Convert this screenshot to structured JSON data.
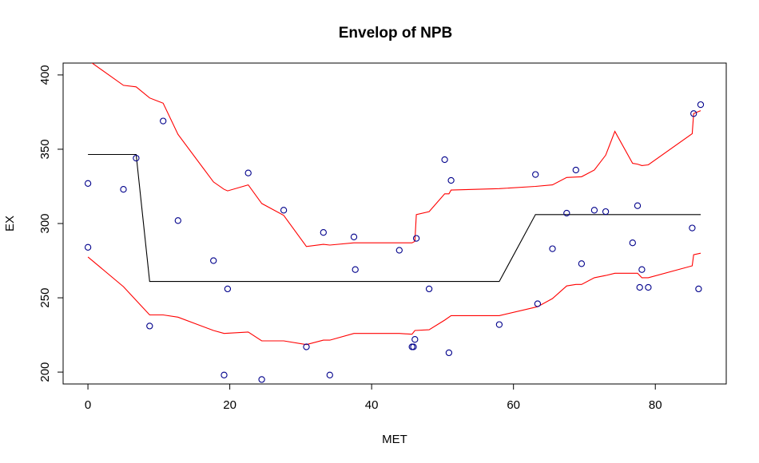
{
  "chart_data": {
    "type": "scatter",
    "title": "Envelop of NPB",
    "xlabel": "MET",
    "ylabel": "EX",
    "xlim": [
      -3.5,
      90
    ],
    "ylim": [
      192,
      408
    ],
    "x_ticks": [
      0,
      20,
      40,
      60,
      80
    ],
    "y_ticks": [
      200,
      250,
      300,
      350,
      400
    ],
    "grid": false,
    "legend": "none",
    "point_color": "#00008B",
    "points": [
      {
        "x": 0,
        "y": 327
      },
      {
        "x": 0,
        "y": 284
      },
      {
        "x": 5,
        "y": 323
      },
      {
        "x": 6.8,
        "y": 344
      },
      {
        "x": 8.7,
        "y": 231
      },
      {
        "x": 10.6,
        "y": 369
      },
      {
        "x": 12.7,
        "y": 302
      },
      {
        "x": 17.7,
        "y": 275
      },
      {
        "x": 19.2,
        "y": 198
      },
      {
        "x": 19.7,
        "y": 256
      },
      {
        "x": 22.6,
        "y": 334
      },
      {
        "x": 24.5,
        "y": 195
      },
      {
        "x": 27.6,
        "y": 309
      },
      {
        "x": 30.8,
        "y": 217
      },
      {
        "x": 33.2,
        "y": 294
      },
      {
        "x": 34.1,
        "y": 198
      },
      {
        "x": 37.5,
        "y": 291
      },
      {
        "x": 37.7,
        "y": 269
      },
      {
        "x": 43.9,
        "y": 282
      },
      {
        "x": 45.7,
        "y": 217
      },
      {
        "x": 45.9,
        "y": 217
      },
      {
        "x": 46.1,
        "y": 222
      },
      {
        "x": 46.3,
        "y": 290
      },
      {
        "x": 48.1,
        "y": 256
      },
      {
        "x": 50.3,
        "y": 343
      },
      {
        "x": 50.9,
        "y": 213
      },
      {
        "x": 51.2,
        "y": 329
      },
      {
        "x": 58,
        "y": 232
      },
      {
        "x": 63.1,
        "y": 333
      },
      {
        "x": 63.4,
        "y": 246
      },
      {
        "x": 65.5,
        "y": 283
      },
      {
        "x": 67.5,
        "y": 307
      },
      {
        "x": 68.8,
        "y": 336
      },
      {
        "x": 69.6,
        "y": 273
      },
      {
        "x": 71.4,
        "y": 309
      },
      {
        "x": 73,
        "y": 308
      },
      {
        "x": 76.8,
        "y": 287
      },
      {
        "x": 77.5,
        "y": 312
      },
      {
        "x": 77.8,
        "y": 257
      },
      {
        "x": 78.1,
        "y": 269
      },
      {
        "x": 79,
        "y": 257
      },
      {
        "x": 85.2,
        "y": 297
      },
      {
        "x": 85.4,
        "y": 374
      },
      {
        "x": 86.1,
        "y": 256
      },
      {
        "x": 86.4,
        "y": 380
      }
    ],
    "series": [
      {
        "color": "#000000",
        "x": [
          0,
          6.8,
          8.7,
          58,
          63.1,
          86.4
        ],
        "y": [
          346.5,
          346.5,
          261,
          261,
          306,
          306
        ]
      },
      {
        "color": "#FF0000",
        "x": [
          0,
          5,
          6.8,
          8.7,
          10.6,
          12.7,
          17.7,
          19.2,
          19.7,
          22.6,
          24.5,
          27.6,
          30.8,
          33.2,
          34.1,
          37.5,
          43.9,
          45.7,
          46.1,
          46.3,
          48.1,
          50.3,
          50.9,
          51.2,
          58,
          63.1,
          65.5,
          67.5,
          69.6,
          71.4,
          73,
          74.3,
          76.8,
          77.5,
          78.1,
          79,
          85.2,
          85.4,
          86.4
        ],
        "y": [
          410,
          393,
          392,
          384.5,
          381,
          360,
          328,
          323,
          322,
          326,
          313.5,
          305.5,
          284.5,
          286,
          285.5,
          287,
          287,
          287,
          288,
          306,
          308,
          320,
          320,
          322.5,
          323.5,
          325,
          326,
          331,
          331.5,
          336,
          346,
          362,
          340.5,
          340,
          339,
          339.5,
          360.5,
          374,
          376
        ]
      },
      {
        "color": "#FF0000",
        "x": [
          0,
          5,
          8.7,
          10.6,
          12.7,
          17.7,
          19.2,
          22.6,
          24.5,
          27.6,
          30.8,
          33.2,
          34.1,
          37.5,
          43.9,
          45.7,
          46.1,
          48.1,
          50.3,
          51.2,
          58,
          63.4,
          65.5,
          67.5,
          68.8,
          69.6,
          71.4,
          73,
          74.3,
          76.8,
          77.5,
          78.1,
          79,
          85.2,
          85.4,
          86.4
        ],
        "y": [
          277.5,
          257.5,
          238.5,
          238.5,
          237,
          228,
          226,
          227,
          221,
          221,
          218.5,
          221.5,
          221.5,
          226,
          226,
          225.5,
          228,
          228.5,
          235,
          238,
          238,
          244,
          249.5,
          258,
          259,
          259,
          263.5,
          265,
          266.5,
          266.5,
          266.5,
          263.5,
          263.5,
          271.5,
          279,
          280
        ]
      }
    ]
  }
}
